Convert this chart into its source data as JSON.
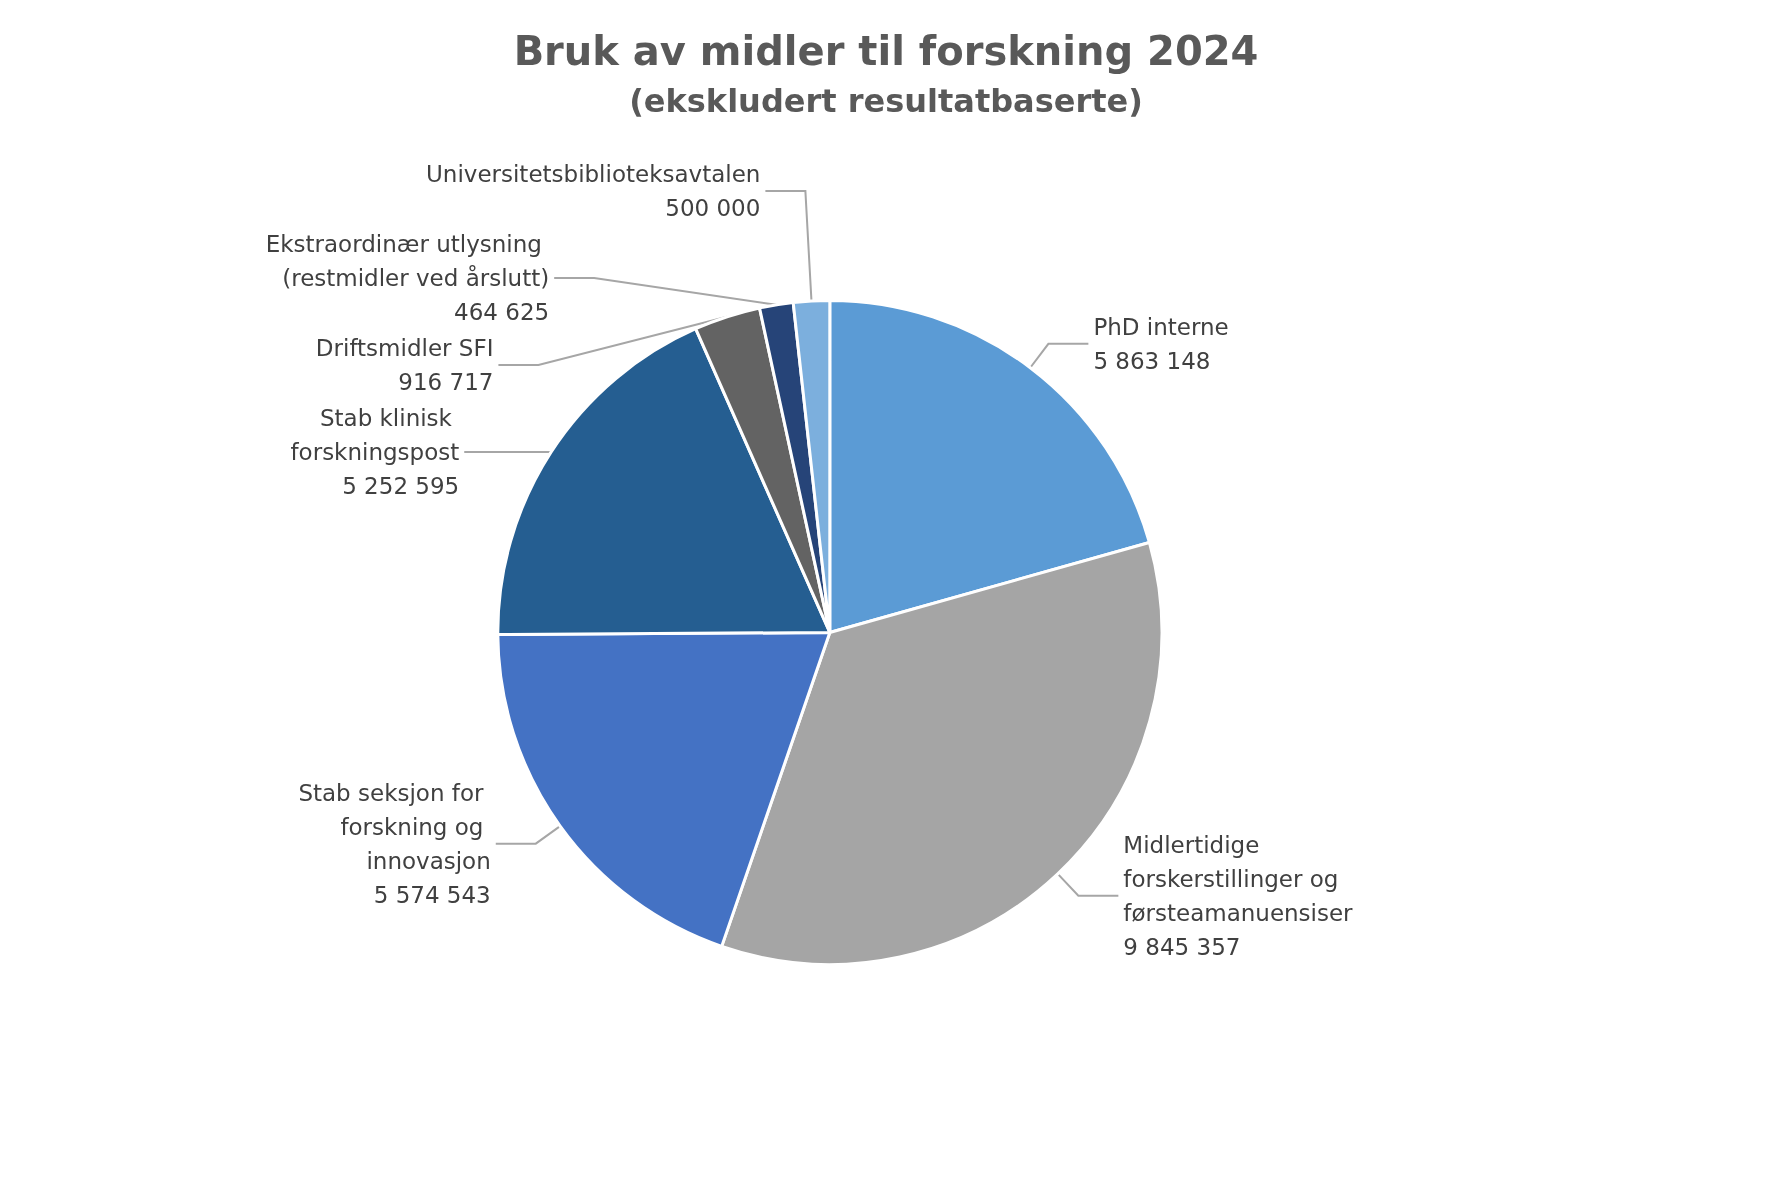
{
  "chart_data": {
    "type": "pie",
    "title": "Bruk av midler til forskning 2024",
    "subtitle": "(ekskludert resultatbaserte)",
    "categories": [
      "PhD interne",
      "Midlertidige forskerstillinger og førsteamanuensiser",
      "Stab seksjon for forskning og innovasjon",
      "Stab klinisk forskningspost",
      "Driftsmidler SFI",
      "Ekstraordinær utlysning (restmidler ved årslutt)",
      "Universitetsbiblioteksavtalen"
    ],
    "values": [
      5863148,
      9845357,
      5574543,
      5252595,
      916717,
      464625,
      500000
    ],
    "colors": [
      "#5b9bd5",
      "#a5a5a5",
      "#4472c4",
      "#255e91",
      "#636363",
      "#264478",
      "#7cafdd"
    ],
    "data_labels": true,
    "legend": false
  }
}
